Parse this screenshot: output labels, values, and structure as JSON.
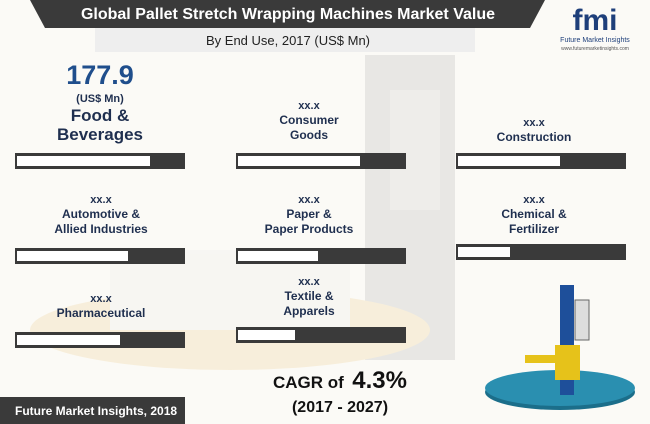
{
  "header": {
    "title": "Global Pallet Stretch Wrapping Machines Market Value",
    "subtitle": "By End Use, 2017 (US$ Mn)"
  },
  "logo": {
    "name": "fmi",
    "tagline": "Future Market Insights",
    "url": "www.futuremarketinsights.com"
  },
  "segments": [
    {
      "value": 177.9,
      "unit": "(US$ Mn)",
      "label": [
        "Food &",
        "Beverages"
      ]
    },
    {
      "value": "xx.x",
      "label": [
        "Consumer",
        "Goods"
      ]
    },
    {
      "value": "xx.x",
      "label": [
        "Construction"
      ]
    },
    {
      "value": "xx.x",
      "label": [
        "Automotive &",
        "Allied Industries"
      ]
    },
    {
      "value": "xx.x",
      "label": [
        "Paper &",
        "Paper Products"
      ]
    },
    {
      "value": "xx.x",
      "label": [
        "Chemical &",
        "Fertilizer"
      ]
    },
    {
      "value": "xx.x",
      "label": [
        "Pharmaceutical"
      ]
    },
    {
      "value": "xx.x",
      "label": [
        "Textile &",
        "Apparels"
      ]
    }
  ],
  "cagr": {
    "prefix": "CAGR of",
    "value": "4.3%",
    "period": "(2017 - 2027)"
  },
  "footer": {
    "source": "Future Market Insights, 2018"
  }
}
